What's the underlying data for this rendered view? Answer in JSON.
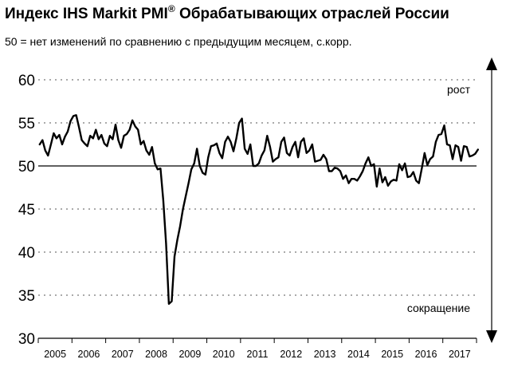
{
  "chart_data": {
    "type": "line",
    "title": "Индекс IHS Markit PMI",
    "title_superscript": "®",
    "title_suffix": "Обрабатывающих отраслей России",
    "subtitle": "50 = нет изменений по сравнению с предыдущим месяцем, с.корр.",
    "ylim": [
      30,
      60
    ],
    "yticks": [
      30,
      35,
      40,
      45,
      50,
      55,
      60
    ],
    "grid": "horizontal-dashed",
    "reference_line": 50,
    "x_labels": [
      "2005",
      "2006",
      "2007",
      "2008",
      "2009",
      "2010",
      "2011",
      "2012",
      "2013",
      "2014",
      "2015",
      "2016",
      "2017"
    ],
    "annotations": {
      "up": "рост",
      "down": "сокращение"
    },
    "series": [
      {
        "x_start": "2005-01",
        "frequency": "monthly",
        "values": [
          52.5,
          53.0,
          51.8,
          51.2,
          52.5,
          53.8,
          53.2,
          53.6,
          52.5,
          53.4,
          54.0,
          55.2,
          55.8,
          55.9,
          54.5,
          53.0,
          52.6,
          52.3,
          53.5,
          53.2,
          54.2,
          53.1,
          53.6,
          52.6,
          52.3,
          53.5,
          53.1,
          54.8,
          53.0,
          52.1,
          53.5,
          53.7,
          54.2,
          55.3,
          54.6,
          54.2,
          52.5,
          52.9,
          51.8,
          51.3,
          52.2,
          50.3,
          49.6,
          49.7,
          46.0,
          41.0,
          34.0,
          34.3,
          39.5,
          41.4,
          43.0,
          45.0,
          46.5,
          48.0,
          49.6,
          50.3,
          52.0,
          50.0,
          49.2,
          49.0,
          51.0,
          52.3,
          52.4,
          52.6,
          51.5,
          50.9,
          52.8,
          53.4,
          52.8,
          51.7,
          53.2,
          55.0,
          55.5,
          52.0,
          51.4,
          52.5,
          50.0,
          50.0,
          50.3,
          51.2,
          51.8,
          53.5,
          52.2,
          50.5,
          50.8,
          51.0,
          52.8,
          53.3,
          51.5,
          51.2,
          52.2,
          52.8,
          51.0,
          52.8,
          53.2,
          51.5,
          51.8,
          52.5,
          50.5,
          50.6,
          50.7,
          51.3,
          50.8,
          49.4,
          49.4,
          49.8,
          49.7,
          49.4,
          48.5,
          48.9,
          48.0,
          48.5,
          48.5,
          48.3,
          48.8,
          49.4,
          50.3,
          51.0,
          50.0,
          50.2,
          47.6,
          49.7,
          48.1,
          48.7,
          47.7,
          48.2,
          48.4,
          48.3,
          50.2,
          49.5,
          50.3,
          48.7,
          48.8,
          49.3,
          48.3,
          48.0,
          49.7,
          51.5,
          50.1,
          50.8,
          51.1,
          52.8,
          53.6,
          53.7,
          54.7,
          52.5,
          52.4,
          50.8,
          52.4,
          52.2,
          50.6,
          52.3,
          52.2,
          51.1,
          51.2,
          51.4,
          51.9
        ]
      }
    ]
  }
}
